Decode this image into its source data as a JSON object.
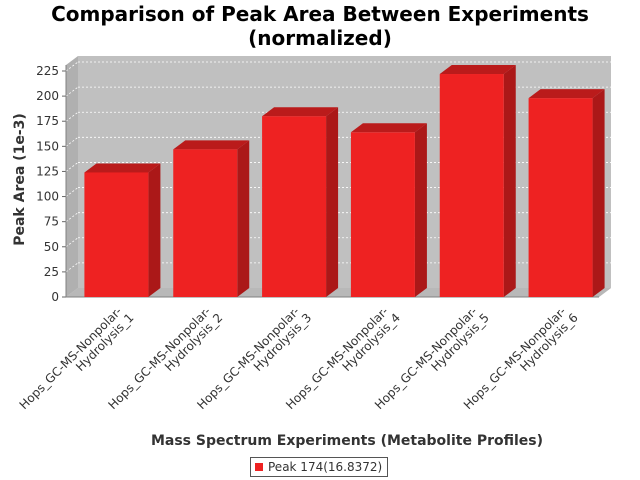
{
  "chart_data": {
    "type": "bar",
    "title_line1": "Comparison of Peak Area Between Experiments",
    "title_line2": "(normalized)",
    "xlabel": "Mass Spectrum Experiments (Metabolite Profiles)",
    "ylabel": "Peak Area (1e-3)",
    "categories": [
      [
        "Hops_GC-MS-Nonpolar-",
        "Hydrolysis_1"
      ],
      [
        "Hops_GC-MS-Nonpolar-",
        "Hydrolysis_2"
      ],
      [
        "Hops_GC-MS-Nonpolar-",
        "Hydrolysis_3"
      ],
      [
        "Hops_GC-MS-Nonpolar-",
        "Hydrolysis_4"
      ],
      [
        "Hops_GC-MS-Nonpolar-",
        "Hydrolysis_5"
      ],
      [
        "Hops_GC-MS-Nonpolar-",
        "Hydrolysis_6"
      ]
    ],
    "series": [
      {
        "name": "Peak 174(16.8372)",
        "color": "#ee2222",
        "values": [
          124,
          147,
          180,
          164,
          222,
          198
        ]
      }
    ],
    "yticks": [
      0,
      25,
      50,
      75,
      100,
      125,
      150,
      175,
      200,
      225
    ],
    "ylim": [
      0,
      235
    ],
    "grid": true,
    "legend_position": "bottom-center",
    "plot_background": "#c0c0c0",
    "three_d": true
  }
}
